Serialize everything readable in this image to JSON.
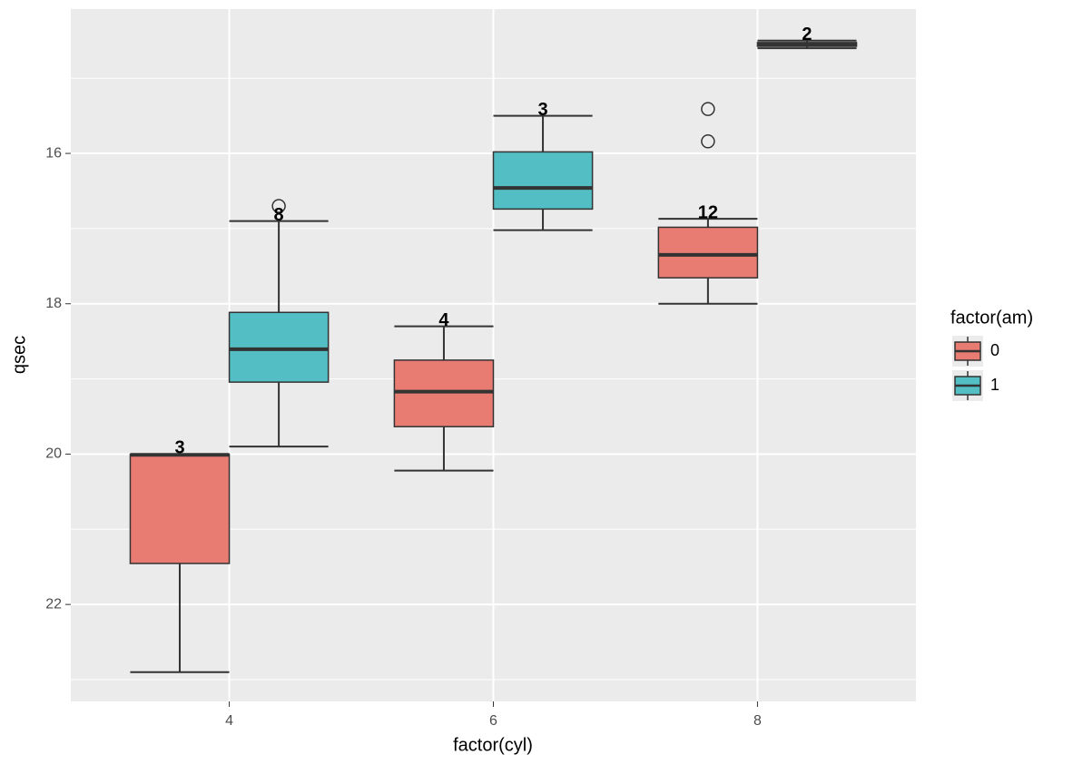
{
  "chart_data": {
    "type": "boxplot",
    "x_label": "factor(cyl)",
    "y_label": "qsec",
    "xlim": [
      2.8,
      9.2
    ],
    "xticks": [
      4,
      6,
      8
    ],
    "ylim": [
      14.08,
      23.29
    ],
    "y_reversed": true,
    "yticks": [
      16,
      18,
      20,
      22
    ],
    "y_minor_ticks": [
      15,
      17,
      19,
      21,
      23
    ],
    "grid": true,
    "box_width": 0.75,
    "legend_title": "factor(am)",
    "legend_position": "right",
    "series": [
      {
        "name": "0",
        "color": "#e87b72",
        "offset": -0.375,
        "boxes": [
          {
            "x": 4,
            "lower": 20.0,
            "q1": 20.005,
            "median": 20.01,
            "q3": 21.455,
            "upper": 22.9,
            "outliers": [],
            "n": 3
          },
          {
            "x": 6,
            "lower": 18.3,
            "q1": 18.75,
            "median": 19.17,
            "q3": 19.635,
            "upper": 20.22,
            "outliers": [],
            "n": 4
          },
          {
            "x": 8,
            "lower": 16.87,
            "q1": 16.9825,
            "median": 17.35,
            "q3": 17.655,
            "upper": 18.0,
            "outliers": [
              15.41,
              15.84
            ],
            "n": 12
          }
        ]
      },
      {
        "name": "1",
        "color": "#53bec4",
        "offset": 0.375,
        "boxes": [
          {
            "x": 4,
            "lower": 16.9,
            "q1": 18.115,
            "median": 18.605,
            "q3": 19.0425,
            "upper": 19.9,
            "outliers": [
              16.7
            ],
            "n": 8
          },
          {
            "x": 6,
            "lower": 15.5,
            "q1": 15.98,
            "median": 16.46,
            "q3": 16.74,
            "upper": 17.02,
            "outliers": [],
            "n": 3
          },
          {
            "x": 8,
            "lower": 14.5,
            "q1": 14.525,
            "median": 14.55,
            "q3": 14.575,
            "upper": 14.6,
            "outliers": [],
            "n": 2
          }
        ]
      }
    ]
  }
}
